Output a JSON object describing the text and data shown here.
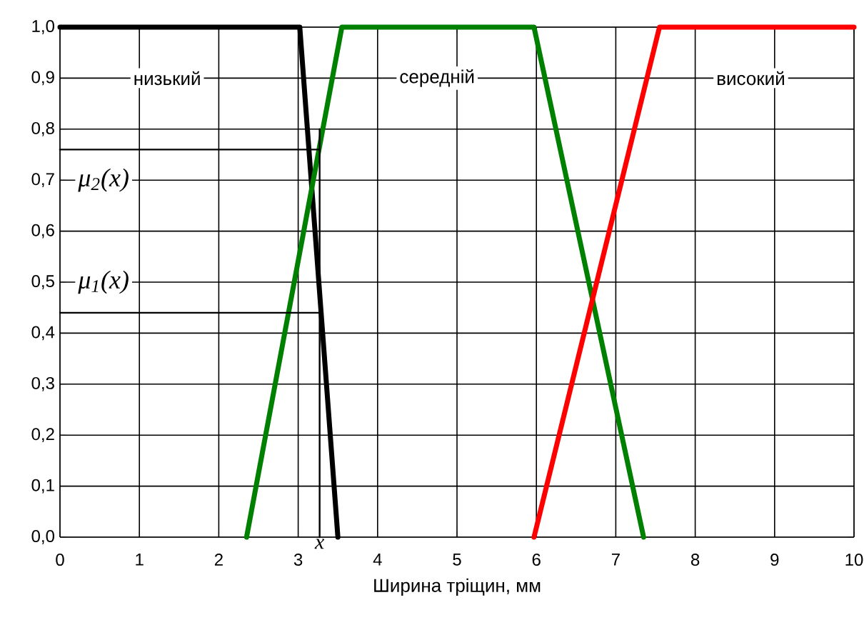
{
  "chart_data": {
    "type": "line",
    "xlabel": "Ширина тріщин, мм",
    "xlim": [
      0,
      10
    ],
    "ylim": [
      0,
      1
    ],
    "xticks": [
      0,
      1,
      2,
      3,
      4,
      5,
      6,
      7,
      8,
      9,
      10
    ],
    "yticks": [
      {
        "value": 0,
        "label": "0,0"
      },
      {
        "value": 0.1,
        "label": "0,1"
      },
      {
        "value": 0.2,
        "label": "0,2"
      },
      {
        "value": 0.3,
        "label": "0,3"
      },
      {
        "value": 0.4,
        "label": "0,4"
      },
      {
        "value": 0.5,
        "label": "0,5"
      },
      {
        "value": 0.6,
        "label": "0,6"
      },
      {
        "value": 0.7,
        "label": "0,7"
      },
      {
        "value": 0.8,
        "label": "0,8"
      },
      {
        "value": 0.9,
        "label": "0,9"
      },
      {
        "value": 1,
        "label": "1,0"
      }
    ],
    "grid": true,
    "marker": "none",
    "line_style": "solid",
    "series": [
      {
        "color": "#000000",
        "x": [
          0,
          3.02,
          3.5
        ],
        "values": [
          1,
          1,
          0
        ]
      },
      {
        "color": "#008000",
        "x": [
          2.35,
          3.55,
          5.97,
          7.35
        ],
        "values": [
          0,
          1,
          1,
          0
        ]
      },
      {
        "color": "#ff0000",
        "x": [
          5.97,
          7.55,
          10
        ],
        "values": [
          0,
          1,
          1
        ]
      },
      {
        "color": "#000000",
        "x": [
          0,
          3.27
        ],
        "values": [
          0.76,
          0.76
        ]
      },
      {
        "color": "#000000",
        "x": [
          0,
          3.27
        ],
        "values": [
          0.44,
          0.44
        ]
      },
      {
        "color": "#000000",
        "x": [
          3.27,
          3.27
        ],
        "values": [
          0,
          0.8
        ]
      }
    ],
    "annotations": [
      "низький",
      "середній",
      "високий",
      "μ$_{2}$(x)",
      "μ$_{1}$(x)",
      {
        "text": "x",
        "x": 3.27,
        "y": 0
      }
    ]
  }
}
